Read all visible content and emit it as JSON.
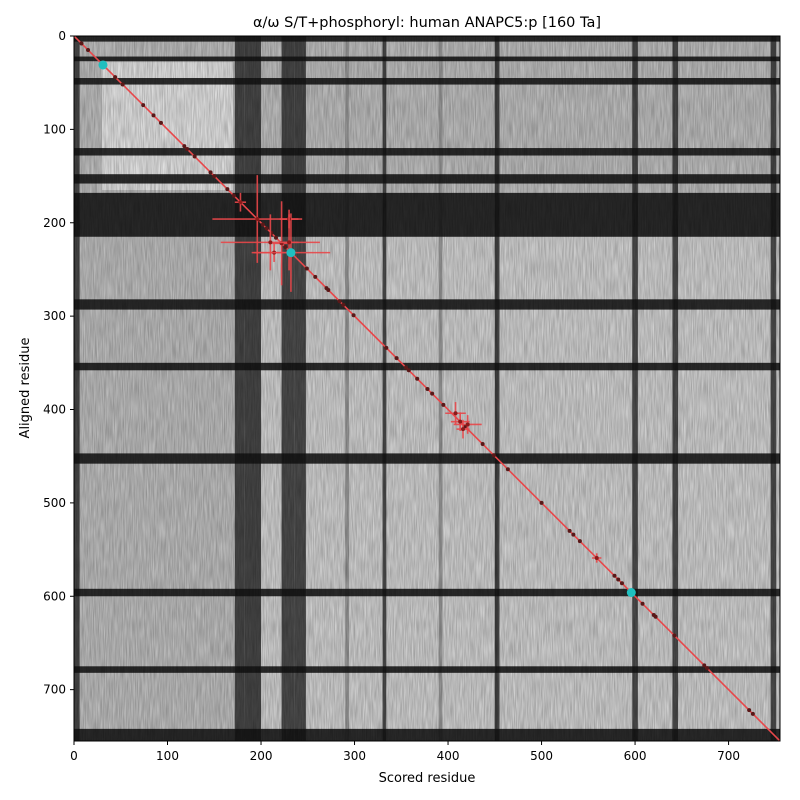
{
  "chart_data": {
    "type": "heatmap",
    "title": "α/ω S/T+phosphoryl: human ANAPC5:p [160 Ta]",
    "xlabel": "Scored residue",
    "ylabel": "Aligned residue",
    "n_residues": 755,
    "xlim": [
      0,
      755
    ],
    "ylim": [
      755,
      0
    ],
    "x_ticks": [
      0,
      100,
      200,
      300,
      400,
      500,
      600,
      700
    ],
    "y_ticks": [
      0,
      100,
      200,
      300,
      400,
      500,
      600,
      700
    ],
    "colormap": "grayscale",
    "heatmap_features": {
      "dark_horizontal_bands": [
        [
          0,
          6
        ],
        [
          22,
          27
        ],
        [
          45,
          52
        ],
        [
          120,
          128
        ],
        [
          148,
          158
        ],
        [
          168,
          215
        ],
        [
          282,
          293
        ],
        [
          350,
          358
        ],
        [
          447,
          458
        ],
        [
          592,
          600
        ],
        [
          675,
          682
        ],
        [
          742,
          755
        ]
      ],
      "dark_vertical_bands": [
        [
          0,
          6
        ],
        [
          172,
          182
        ],
        [
          182,
          200
        ],
        [
          222,
          236
        ],
        [
          236,
          248
        ],
        [
          330,
          334
        ],
        [
          450,
          455
        ],
        [
          597,
          603
        ],
        [
          640,
          646
        ],
        [
          745,
          751
        ]
      ],
      "bright_region": [
        [
          30,
          170
        ],
        [
          28,
          165
        ]
      ],
      "light_vertical_lines": [
        [
          290,
          294
        ],
        [
          390,
          394
        ],
        [
          450,
          453
        ]
      ]
    },
    "diagonal_line": {
      "from": [
        0,
        0
      ],
      "to": [
        755,
        755
      ],
      "color": "#e8474a"
    },
    "series": [
      {
        "marker": "dot",
        "color": "#5a1818",
        "points": [
          [
            8,
            8
          ],
          [
            15,
            15
          ],
          [
            44,
            44
          ],
          [
            52,
            52
          ],
          [
            74,
            74
          ],
          [
            85,
            85
          ],
          [
            93,
            93
          ],
          [
            118,
            118
          ],
          [
            121,
            121
          ],
          [
            129,
            129
          ],
          [
            146,
            146
          ],
          [
            150,
            150
          ],
          [
            164,
            164
          ],
          [
            171,
            171
          ],
          [
            197,
            197
          ],
          [
            202,
            202
          ],
          [
            206,
            206
          ],
          [
            211,
            211
          ],
          [
            216,
            216
          ],
          [
            226,
            226
          ],
          [
            249,
            249
          ],
          [
            258,
            258
          ],
          [
            270,
            270
          ],
          [
            272,
            272
          ],
          [
            284,
            284
          ],
          [
            288,
            288
          ],
          [
            299,
            299
          ],
          [
            334,
            334
          ],
          [
            345,
            345
          ],
          [
            355,
            355
          ],
          [
            358,
            358
          ],
          [
            367,
            367
          ],
          [
            378,
            378
          ],
          [
            383,
            383
          ],
          [
            395,
            395
          ],
          [
            418,
            418
          ],
          [
            437,
            437
          ],
          [
            449,
            449
          ],
          [
            464,
            464
          ],
          [
            500,
            500
          ],
          [
            530,
            530
          ],
          [
            534,
            534
          ],
          [
            541,
            541
          ],
          [
            578,
            578
          ],
          [
            582,
            582
          ],
          [
            586,
            586
          ],
          [
            608,
            608
          ],
          [
            620,
            620
          ],
          [
            622,
            622
          ],
          [
            642,
            642
          ],
          [
            674,
            674
          ],
          [
            677,
            677
          ],
          [
            722,
            722
          ],
          [
            726,
            726
          ]
        ]
      },
      {
        "marker": "cross-errorbar",
        "color": "#e8474a",
        "points": [
          {
            "x": 178,
            "y": 178,
            "xerr": 6,
            "yerr": 10
          },
          {
            "x": 196,
            "y": 196,
            "xerr": 48,
            "yerr": 47
          },
          {
            "x": 210,
            "y": 221,
            "xerr": 53,
            "yerr": 30
          },
          {
            "x": 214,
            "y": 232,
            "xerr": 22,
            "yerr": 10
          },
          {
            "x": 222,
            "y": 222,
            "xerr": 10,
            "yerr": 45
          },
          {
            "x": 232,
            "y": 232,
            "xerr": 42,
            "yerr": 42
          },
          {
            "x": 230,
            "y": 196,
            "xerr": 10,
            "yerr": 10
          },
          {
            "x": 230,
            "y": 221,
            "xerr": 10,
            "yerr": 30
          },
          {
            "x": 408,
            "y": 404,
            "xerr": 11,
            "yerr": 12
          },
          {
            "x": 413,
            "y": 413,
            "xerr": 10,
            "yerr": 10
          },
          {
            "x": 416,
            "y": 421,
            "xerr": 7,
            "yerr": 10
          },
          {
            "x": 421,
            "y": 416,
            "xerr": 15,
            "yerr": 10
          },
          {
            "x": 559,
            "y": 559,
            "xerr": 5,
            "yerr": 5
          }
        ]
      },
      {
        "marker": "circle",
        "color": "#1fbfbf",
        "points": [
          [
            31,
            31
          ],
          [
            232,
            232
          ],
          [
            596,
            596
          ]
        ]
      }
    ]
  }
}
